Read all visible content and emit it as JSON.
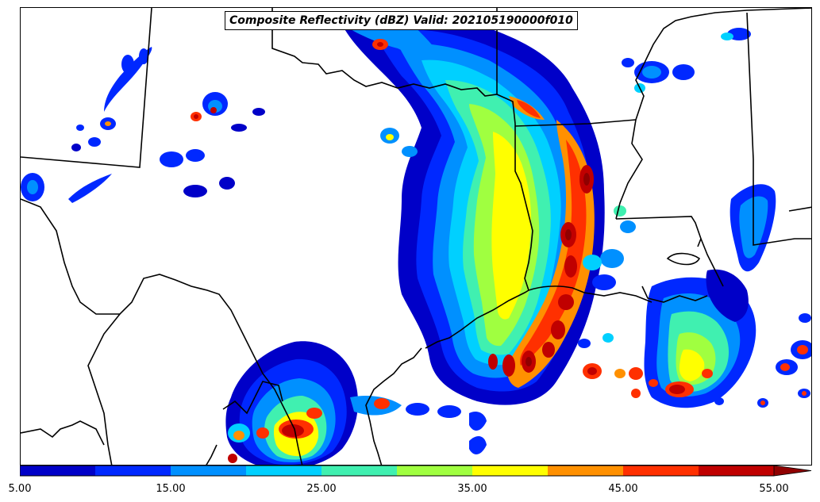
{
  "title": "Composite Reflectivity (dBZ) Valid: 202105190000f010",
  "colorbar": {
    "ticks": [
      "5.00",
      "15.00",
      "25.00",
      "35.00",
      "45.00",
      "55.00"
    ],
    "colors": [
      "#0000c8",
      "#0028ff",
      "#0090ff",
      "#00d0ff",
      "#40f0b0",
      "#a0ff40",
      "#ffff00",
      "#ff9000",
      "#ff3000",
      "#c00000",
      "#900000"
    ]
  },
  "map": {
    "palette": {
      "land_background": "#ffffff",
      "boundaries": "#000000"
    }
  }
}
